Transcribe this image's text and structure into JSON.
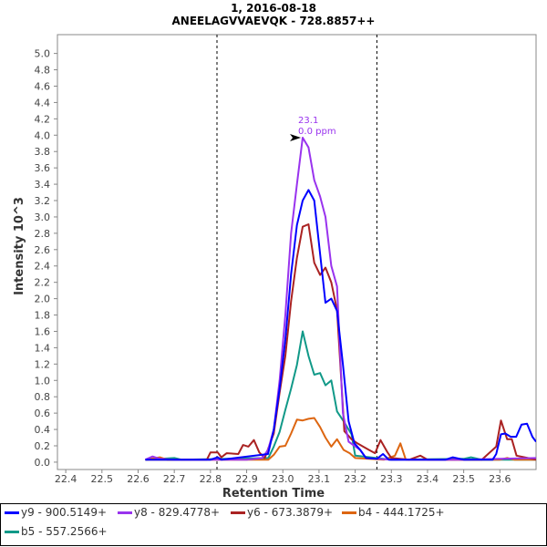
{
  "chart_data": {
    "type": "line",
    "title": "1, 2016-08-18",
    "subtitle": "ANEELAGVVAEVQK - 728.8857++",
    "xlabel": "Retention Time",
    "ylabel": "Intensity 10^3",
    "xlim": [
      22.377,
      23.7
    ],
    "ylim": [
      -0.09,
      5.23
    ],
    "xticks": [
      "22.4",
      "22.5",
      "22.6",
      "22.7",
      "22.8",
      "22.9",
      "23.0",
      "23.1",
      "23.2",
      "23.3",
      "23.4",
      "23.5",
      "23.6"
    ],
    "yticks": [
      "0.0",
      "0.2",
      "0.4",
      "0.6",
      "0.8",
      "1.0",
      "1.2",
      "1.4",
      "1.6",
      "1.8",
      "2.0",
      "2.2",
      "2.4",
      "2.6",
      "2.8",
      "3.0",
      "3.2",
      "3.4",
      "3.6",
      "3.8",
      "4.0",
      "4.2",
      "4.4",
      "4.6",
      "4.8",
      "5.0"
    ],
    "grid": false,
    "integration_bounds": [
      22.818,
      23.26
    ],
    "legend_position": "bottom",
    "annotation": {
      "x": 23.055,
      "y": 3.97,
      "line1": "23.1",
      "line2": "0.0 ppm",
      "color": "#9933ee"
    },
    "series": [
      {
        "name": "y9 - 900.5149+",
        "color": "#0000ff",
        "points": [
          [
            22.62,
            0.03
          ],
          [
            22.8,
            0.03
          ],
          [
            22.82,
            0.06
          ],
          [
            22.83,
            0.03
          ],
          [
            22.959,
            0.1
          ],
          [
            22.975,
            0.4
          ],
          [
            22.991,
            0.9
          ],
          [
            23.007,
            1.5
          ],
          [
            23.023,
            2.3
          ],
          [
            23.039,
            2.9
          ],
          [
            23.055,
            3.2
          ],
          [
            23.071,
            3.33
          ],
          [
            23.087,
            3.2
          ],
          [
            23.103,
            2.55
          ],
          [
            23.118,
            1.95
          ],
          [
            23.134,
            2.0
          ],
          [
            23.15,
            1.85
          ],
          [
            23.166,
            1.2
          ],
          [
            23.182,
            0.5
          ],
          [
            23.198,
            0.23
          ],
          [
            23.214,
            0.15
          ],
          [
            23.23,
            0.05
          ],
          [
            23.26,
            0.04
          ],
          [
            23.277,
            0.1
          ],
          [
            23.293,
            0.03
          ],
          [
            23.45,
            0.03
          ],
          [
            23.47,
            0.06
          ],
          [
            23.5,
            0.03
          ],
          [
            23.58,
            0.03
          ],
          [
            23.59,
            0.1
          ],
          [
            23.603,
            0.34
          ],
          [
            23.615,
            0.35
          ],
          [
            23.63,
            0.31
          ],
          [
            23.645,
            0.31
          ],
          [
            23.66,
            0.46
          ],
          [
            23.675,
            0.47
          ],
          [
            23.69,
            0.31
          ],
          [
            23.7,
            0.25
          ]
        ]
      },
      {
        "name": "y8 - 829.4778+",
        "color": "#9933ee",
        "points": [
          [
            22.62,
            0.03
          ],
          [
            22.64,
            0.07
          ],
          [
            22.66,
            0.04
          ],
          [
            22.7,
            0.03
          ],
          [
            22.8,
            0.03
          ],
          [
            22.9,
            0.03
          ],
          [
            22.943,
            0.05
          ],
          [
            22.959,
            0.15
          ],
          [
            22.975,
            0.4
          ],
          [
            22.991,
            1.0
          ],
          [
            23.007,
            1.8
          ],
          [
            23.023,
            2.8
          ],
          [
            23.039,
            3.4
          ],
          [
            23.055,
            3.97
          ],
          [
            23.071,
            3.85
          ],
          [
            23.087,
            3.45
          ],
          [
            23.103,
            3.25
          ],
          [
            23.118,
            3.0
          ],
          [
            23.134,
            2.4
          ],
          [
            23.15,
            2.15
          ],
          [
            23.166,
            0.6
          ],
          [
            23.182,
            0.25
          ],
          [
            23.198,
            0.2
          ],
          [
            23.214,
            0.15
          ],
          [
            23.23,
            0.05
          ],
          [
            23.3,
            0.03
          ],
          [
            23.5,
            0.03
          ],
          [
            23.6,
            0.04
          ],
          [
            23.7,
            0.05
          ]
        ]
      },
      {
        "name": "y6 - 673.3879+",
        "color": "#aa2222",
        "points": [
          [
            22.62,
            0.03
          ],
          [
            22.79,
            0.03
          ],
          [
            22.8,
            0.12
          ],
          [
            22.82,
            0.12
          ],
          [
            22.83,
            0.06
          ],
          [
            22.845,
            0.11
          ],
          [
            22.877,
            0.1
          ],
          [
            22.89,
            0.21
          ],
          [
            22.905,
            0.19
          ],
          [
            22.92,
            0.27
          ],
          [
            22.935,
            0.12
          ],
          [
            22.95,
            0.05
          ],
          [
            22.975,
            0.35
          ],
          [
            22.991,
            0.85
          ],
          [
            23.007,
            1.3
          ],
          [
            23.023,
            1.97
          ],
          [
            23.039,
            2.5
          ],
          [
            23.055,
            2.88
          ],
          [
            23.071,
            2.91
          ],
          [
            23.087,
            2.44
          ],
          [
            23.103,
            2.29
          ],
          [
            23.118,
            2.38
          ],
          [
            23.134,
            2.2
          ],
          [
            23.15,
            1.86
          ],
          [
            23.17,
            0.38
          ],
          [
            23.19,
            0.28
          ],
          [
            23.206,
            0.23
          ],
          [
            23.222,
            0.19
          ],
          [
            23.238,
            0.15
          ],
          [
            23.255,
            0.11
          ],
          [
            23.27,
            0.27
          ],
          [
            23.288,
            0.13
          ],
          [
            23.3,
            0.05
          ],
          [
            23.35,
            0.03
          ],
          [
            23.38,
            0.08
          ],
          [
            23.4,
            0.03
          ],
          [
            23.55,
            0.03
          ],
          [
            23.59,
            0.19
          ],
          [
            23.603,
            0.51
          ],
          [
            23.62,
            0.28
          ],
          [
            23.633,
            0.28
          ],
          [
            23.646,
            0.08
          ],
          [
            23.7,
            0.03
          ]
        ]
      },
      {
        "name": "b4 - 444.1725+",
        "color": "#dd6611",
        "points": [
          [
            22.62,
            0.03
          ],
          [
            22.66,
            0.06
          ],
          [
            22.68,
            0.03
          ],
          [
            22.96,
            0.03
          ],
          [
            22.975,
            0.09
          ],
          [
            22.991,
            0.19
          ],
          [
            23.007,
            0.2
          ],
          [
            23.023,
            0.35
          ],
          [
            23.039,
            0.52
          ],
          [
            23.055,
            0.51
          ],
          [
            23.071,
            0.53
          ],
          [
            23.087,
            0.54
          ],
          [
            23.103,
            0.43
          ],
          [
            23.118,
            0.3
          ],
          [
            23.134,
            0.19
          ],
          [
            23.15,
            0.28
          ],
          [
            23.168,
            0.15
          ],
          [
            23.185,
            0.11
          ],
          [
            23.2,
            0.05
          ],
          [
            23.28,
            0.03
          ],
          [
            23.31,
            0.08
          ],
          [
            23.325,
            0.23
          ],
          [
            23.34,
            0.03
          ],
          [
            23.6,
            0.03
          ],
          [
            23.62,
            0.05
          ],
          [
            23.64,
            0.03
          ],
          [
            23.7,
            0.03
          ]
        ]
      },
      {
        "name": "b5 - 557.2566+",
        "color": "#119988",
        "points": [
          [
            22.62,
            0.03
          ],
          [
            22.7,
            0.05
          ],
          [
            22.72,
            0.03
          ],
          [
            22.96,
            0.05
          ],
          [
            22.975,
            0.19
          ],
          [
            22.991,
            0.37
          ],
          [
            23.007,
            0.64
          ],
          [
            23.023,
            0.9
          ],
          [
            23.039,
            1.19
          ],
          [
            23.055,
            1.6
          ],
          [
            23.071,
            1.3
          ],
          [
            23.087,
            1.07
          ],
          [
            23.103,
            1.09
          ],
          [
            23.118,
            0.94
          ],
          [
            23.134,
            1.0
          ],
          [
            23.15,
            0.62
          ],
          [
            23.168,
            0.5
          ],
          [
            23.19,
            0.34
          ],
          [
            23.2,
            0.08
          ],
          [
            23.3,
            0.03
          ],
          [
            23.5,
            0.04
          ],
          [
            23.52,
            0.06
          ],
          [
            23.55,
            0.03
          ],
          [
            23.7,
            0.03
          ]
        ]
      }
    ]
  }
}
